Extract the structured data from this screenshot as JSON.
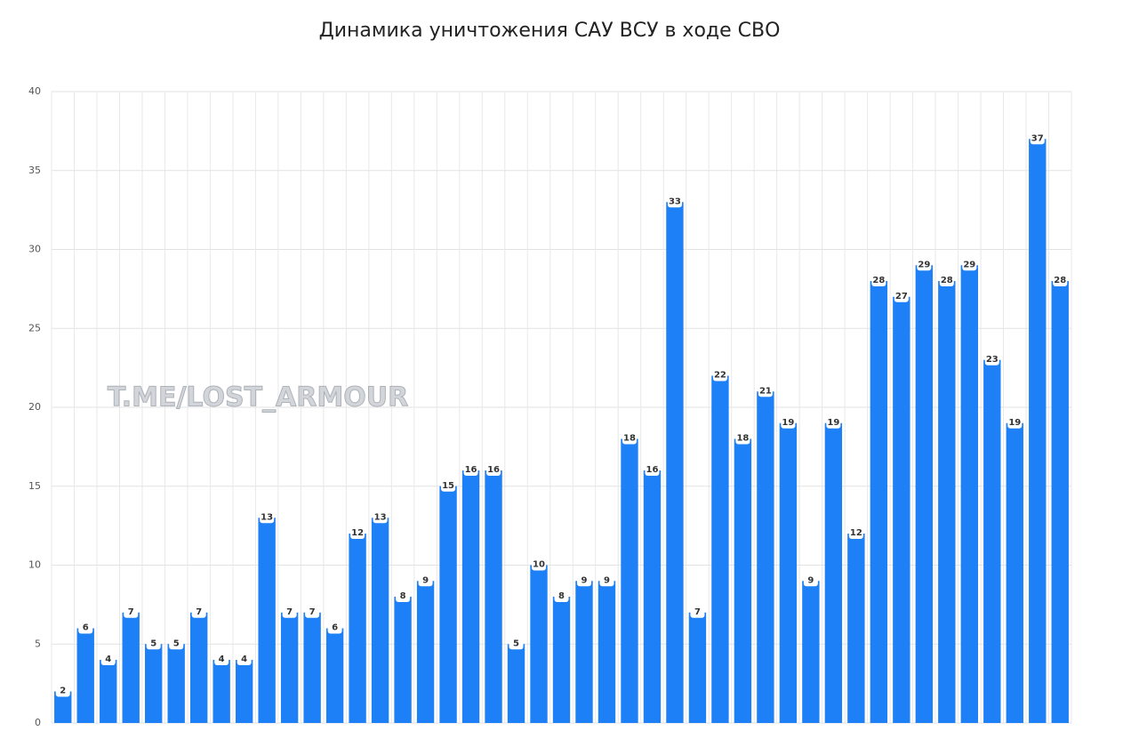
{
  "chart_data": {
    "type": "bar",
    "title": "Динамика уничтожения САУ ВСУ в ходе СВО",
    "watermark": "T.ME/LOST_ARMOUR",
    "categories": [
      null,
      null,
      null,
      null,
      null,
      null,
      null,
      null,
      null,
      null,
      null,
      null,
      null,
      null,
      null,
      null,
      null,
      null,
      null,
      null,
      null,
      null,
      null,
      null,
      null,
      null,
      null,
      null,
      null,
      null,
      null,
      null,
      null,
      null,
      null,
      null,
      null,
      null,
      null,
      null,
      null,
      null,
      null,
      null,
      null
    ],
    "values": [
      2,
      6,
      4,
      7,
      5,
      5,
      7,
      4,
      4,
      13,
      7,
      7,
      6,
      12,
      13,
      8,
      9,
      15,
      16,
      16,
      5,
      10,
      8,
      9,
      9,
      18,
      16,
      33,
      7,
      22,
      18,
      21,
      19,
      9,
      19,
      12,
      28,
      27,
      29,
      28,
      29,
      23,
      19,
      37,
      28
    ],
    "color": "#1e80f6",
    "ylim": [
      0,
      40
    ],
    "yticks": [
      0,
      5,
      10,
      15,
      20,
      25,
      30,
      35,
      40
    ],
    "grid": true
  }
}
